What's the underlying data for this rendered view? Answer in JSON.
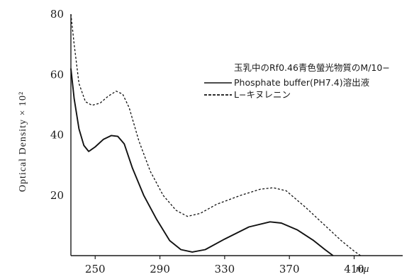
{
  "chart_data": {
    "type": "line",
    "title": "",
    "ylabel": "Optical Density × 10²",
    "xlabel_unit": "mμ",
    "xlim": [
      235,
      440
    ],
    "ylim": [
      0,
      80
    ],
    "x_ticks": [
      250,
      290,
      330,
      370,
      410
    ],
    "x_tick_labels": [
      "250",
      "290",
      "330",
      "370",
      "410"
    ],
    "y_ticks": [
      20,
      40,
      60,
      80
    ],
    "y_tick_labels": [
      "20",
      "40",
      "60",
      "80"
    ],
    "grid": false,
    "legend": {
      "placement": "top-right",
      "heading": "玉乳中のRf0.46青色螢光物質のM/10−",
      "heading_line2": "Phosphate buffer(PH7.4)溶出液",
      "entries": [
        {
          "series_index": 0,
          "style": "solid"
        },
        {
          "series_index": 1,
          "label": "L−キヌレニン",
          "style": "dashed"
        }
      ]
    },
    "series": [
      {
        "style": "solid",
        "color": "#111111",
        "points": [
          [
            235,
            62
          ],
          [
            237,
            52
          ],
          [
            240,
            42
          ],
          [
            243,
            36.5
          ],
          [
            246,
            34.5
          ],
          [
            250,
            36
          ],
          [
            255,
            38.5
          ],
          [
            260,
            39.8
          ],
          [
            264,
            39.5
          ],
          [
            268,
            37
          ],
          [
            273,
            29
          ],
          [
            280,
            20
          ],
          [
            288,
            12
          ],
          [
            296,
            5
          ],
          [
            303,
            2
          ],
          [
            310,
            1.2
          ],
          [
            318,
            2
          ],
          [
            330,
            5.5
          ],
          [
            345,
            9.5
          ],
          [
            358,
            11.2
          ],
          [
            365,
            10.8
          ],
          [
            375,
            8.5
          ],
          [
            385,
            5
          ],
          [
            392,
            2
          ],
          [
            397,
            0
          ]
        ]
      },
      {
        "style": "dashed",
        "color": "#111111",
        "points": [
          [
            235,
            80
          ],
          [
            237,
            70
          ],
          [
            240,
            57
          ],
          [
            244,
            51
          ],
          [
            248,
            49.8
          ],
          [
            253,
            50.5
          ],
          [
            258,
            52.8
          ],
          [
            263,
            54.5
          ],
          [
            267,
            53.5
          ],
          [
            271,
            49
          ],
          [
            277,
            38
          ],
          [
            284,
            28
          ],
          [
            292,
            20
          ],
          [
            300,
            15
          ],
          [
            307,
            13
          ],
          [
            315,
            14
          ],
          [
            325,
            17
          ],
          [
            340,
            20
          ],
          [
            352,
            22
          ],
          [
            360,
            22.5
          ],
          [
            368,
            21.5
          ],
          [
            380,
            16
          ],
          [
            392,
            10
          ],
          [
            402,
            5
          ],
          [
            410,
            1.5
          ],
          [
            414,
            0
          ]
        ]
      }
    ]
  }
}
